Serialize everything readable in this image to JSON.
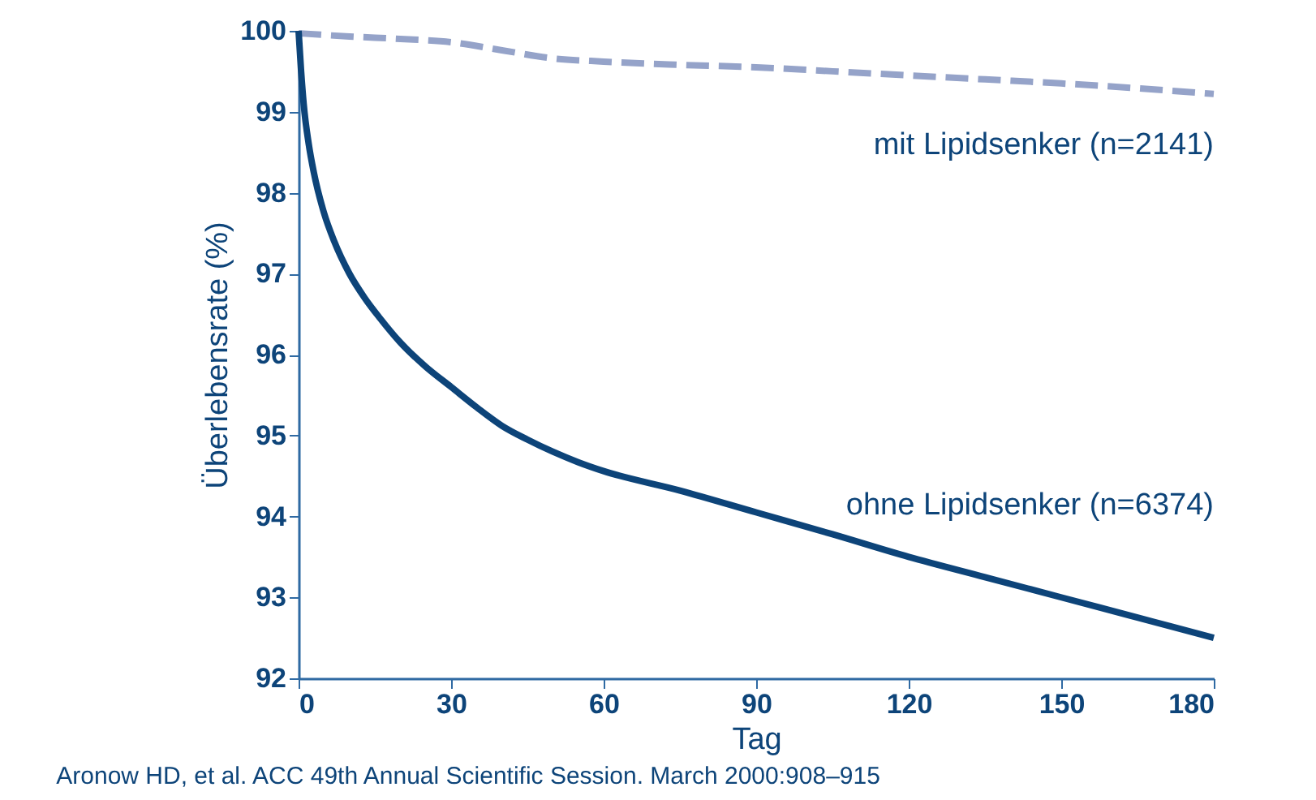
{
  "chart_data": {
    "type": "line",
    "xlabel": "Tag",
    "ylabel": "Überlebensrate (%)",
    "xlim": [
      0,
      180
    ],
    "xticks": [
      0,
      30,
      60,
      90,
      120,
      150,
      180
    ],
    "ylim": [
      92,
      100
    ],
    "yticks": [
      92,
      93,
      94,
      95,
      96,
      97,
      98,
      99,
      100
    ],
    "grid": false,
    "marker": "none",
    "series": [
      {
        "name": "mit Lipidsenker (n=2141)",
        "color": "#95a3c9",
        "line_style": "dashed",
        "x": [
          0,
          10,
          20,
          30,
          40,
          50,
          60,
          75,
          90,
          105,
          120,
          135,
          150,
          165,
          180
        ],
        "values": [
          99.97,
          99.93,
          99.9,
          99.86,
          99.76,
          99.66,
          99.62,
          99.58,
          99.55,
          99.5,
          99.45,
          99.4,
          99.35,
          99.29,
          99.22
        ]
      },
      {
        "name": "ohne Lipidsenker (n=6374)",
        "color": "#0d4479",
        "line_style": "solid",
        "x": [
          0,
          0.5,
          1,
          2,
          3,
          5,
          7,
          10,
          13,
          16,
          20,
          25,
          30,
          35,
          40,
          45,
          50,
          55,
          60,
          75,
          90,
          105,
          120,
          135,
          150,
          165,
          180
        ],
        "values": [
          100,
          99.5,
          99.1,
          98.6,
          98.25,
          97.75,
          97.4,
          97.0,
          96.7,
          96.45,
          96.15,
          95.85,
          95.6,
          95.35,
          95.12,
          94.95,
          94.8,
          94.67,
          94.56,
          94.32,
          94.05,
          93.78,
          93.5,
          93.25,
          93.0,
          92.75,
          92.5
        ]
      }
    ],
    "annotations": [
      "Aronow HD, et al. ACC 49th Annual Scientific Session. March 2000:908–915"
    ]
  }
}
